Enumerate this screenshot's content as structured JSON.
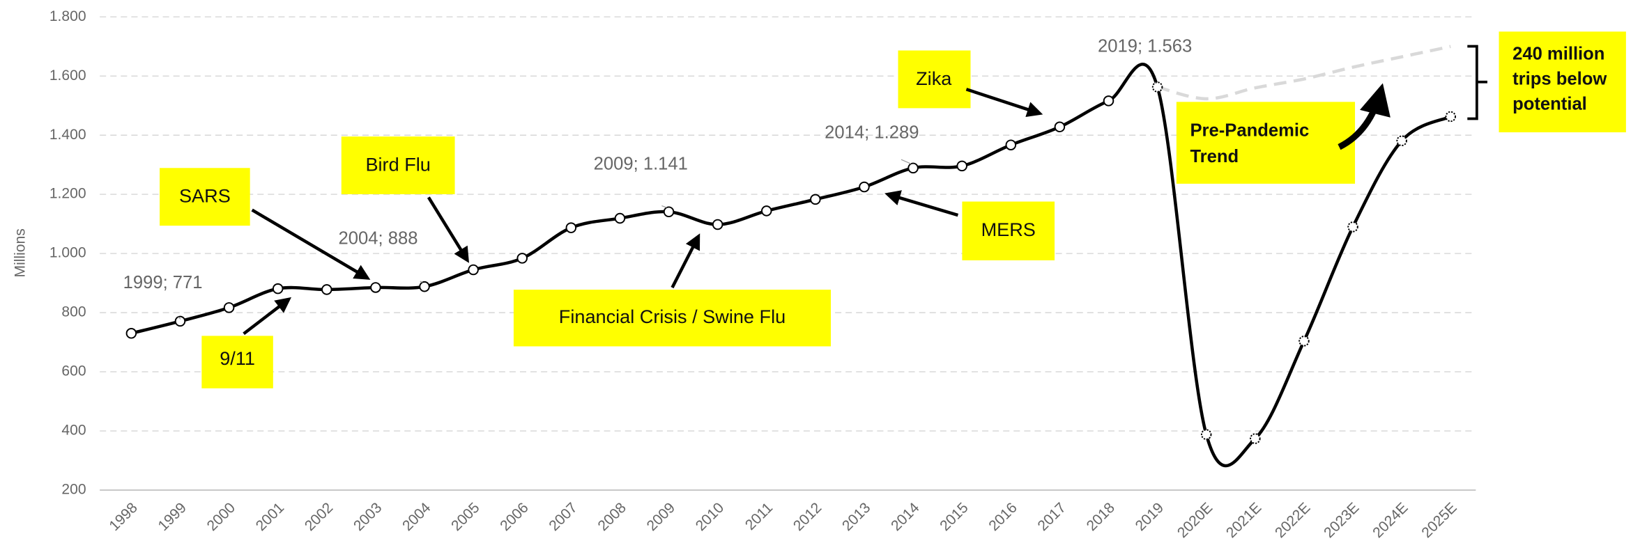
{
  "chart_data": {
    "type": "line",
    "y_label": "Millions",
    "categories": [
      "1998",
      "1999",
      "2000",
      "2001",
      "2002",
      "2003",
      "2004",
      "2005",
      "2006",
      "2007",
      "2008",
      "2009",
      "2010",
      "2011",
      "2012",
      "2013",
      "2014",
      "2015",
      "2016",
      "2017",
      "2018",
      "2019",
      "2020E",
      "2021E",
      "2022E",
      "2023E",
      "2024E",
      "2025E"
    ],
    "series": [
      {
        "color": "#000000",
        "dash": false,
        "values": [
          730,
          771,
          817,
          881,
          878,
          885,
          888,
          945,
          984,
          1087,
          1119,
          1141,
          1098,
          1144,
          1183,
          1225,
          1289,
          1296,
          1367,
          1428,
          1516,
          1563,
          388,
          374,
          704,
          1090,
          1381,
          1463
        ],
        "value_labels": [
          null,
          "1999;  771",
          null,
          null,
          null,
          null,
          "2004;  888",
          null,
          null,
          null,
          null,
          "2009;  1.141",
          null,
          null,
          null,
          null,
          "2014;  1.289",
          null,
          null,
          null,
          null,
          "2019;  1.563",
          null,
          null,
          null,
          null,
          null,
          null
        ]
      },
      {
        "color": "#d9d9d9",
        "dash": true,
        "values": [
          null,
          null,
          null,
          null,
          null,
          null,
          null,
          null,
          null,
          null,
          null,
          null,
          null,
          null,
          null,
          null,
          null,
          null,
          null,
          null,
          null,
          1563,
          1523,
          1560,
          1590,
          1630,
          1665,
          1700
        ]
      }
    ],
    "ylim": [
      200,
      1800
    ],
    "yticks": [
      200,
      400,
      600,
      800,
      {
        "value": 1000,
        "label": "1.000"
      },
      {
        "value": 1200,
        "label": "1.200"
      },
      {
        "value": 1400,
        "label": "1.400"
      },
      {
        "value": 1600,
        "label": "1.600"
      },
      {
        "value": 1800,
        "label": "1.800"
      }
    ],
    "grid": true,
    "annotations": [
      "SARS",
      "Bird Flu",
      "9/11",
      "Financial Crisis / Swine Flu",
      "MERS",
      "Zika",
      [
        "Pre-Pandemic",
        "Trend"
      ],
      [
        "240 million",
        "trips below",
        "potential"
      ]
    ],
    "annotation_color": "#ffff00"
  }
}
